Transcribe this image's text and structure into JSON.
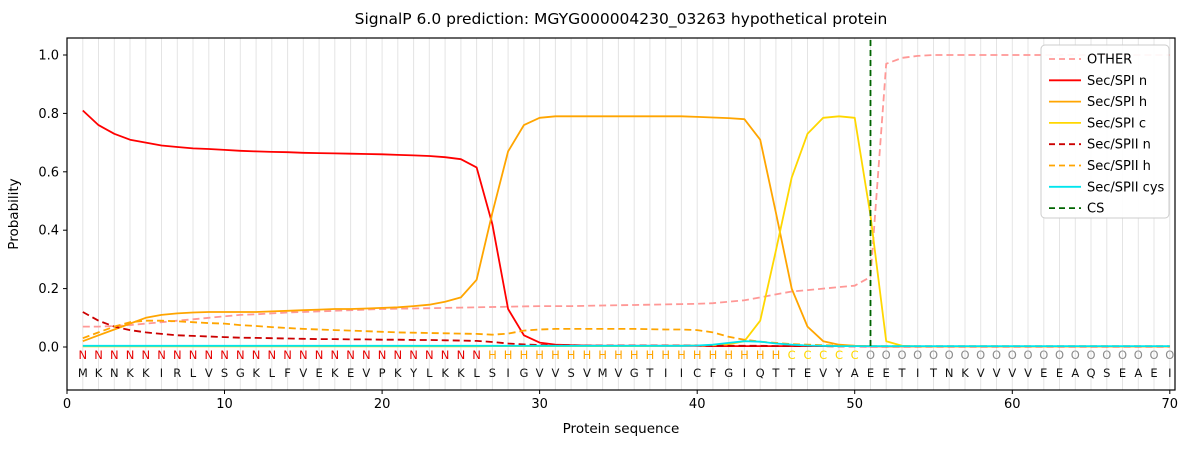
{
  "chart_data": {
    "type": "line",
    "title": "SignalP 6.0 prediction: MGYG000004230_03263 hypothetical protein",
    "xlabel": "Protein sequence",
    "ylabel": "Probability",
    "xticks": [
      0,
      10,
      20,
      30,
      40,
      50,
      60,
      70
    ],
    "yticks": [
      "0.0",
      "0.2",
      "0.4",
      "0.6",
      "0.8",
      "1.0"
    ],
    "xlim": [
      0,
      70.33
    ],
    "ylim": [
      -0.15,
      1.06
    ],
    "grid": "vertical-per-residue",
    "legend_position": "upper-right",
    "x_start": 1,
    "x_step": 1,
    "series": [
      {
        "name": "OTHER",
        "color": "#ff9896",
        "dash": "dashed",
        "values": [
          0.07,
          0.07,
          0.072,
          0.075,
          0.08,
          0.085,
          0.09,
          0.095,
          0.1,
          0.105,
          0.11,
          0.112,
          0.115,
          0.118,
          0.12,
          0.122,
          0.124,
          0.126,
          0.128,
          0.13,
          0.131,
          0.132,
          0.133,
          0.134,
          0.135,
          0.136,
          0.137,
          0.138,
          0.139,
          0.14,
          0.14,
          0.14,
          0.141,
          0.142,
          0.143,
          0.144,
          0.145,
          0.146,
          0.147,
          0.148,
          0.15,
          0.155,
          0.16,
          0.17,
          0.18,
          0.19,
          0.195,
          0.2,
          0.205,
          0.21,
          0.24,
          0.97,
          0.99,
          0.997,
          1.0,
          1.0,
          1.0,
          1.0,
          1.0,
          1.0,
          1.0,
          1.0,
          1.0,
          1.0,
          1.0,
          1.0,
          1.0,
          1.0,
          1.0,
          1.0
        ]
      },
      {
        "name": "Sec/SPI n",
        "color": "#ff0000",
        "dash": "solid",
        "values": [
          0.81,
          0.76,
          0.73,
          0.71,
          0.7,
          0.69,
          0.685,
          0.68,
          0.678,
          0.675,
          0.672,
          0.67,
          0.668,
          0.667,
          0.665,
          0.664,
          0.663,
          0.662,
          0.661,
          0.66,
          0.658,
          0.656,
          0.654,
          0.65,
          0.643,
          0.615,
          0.42,
          0.13,
          0.04,
          0.015,
          0.008,
          0.006,
          0.005,
          0.004,
          0.004,
          0.004,
          0.004,
          0.004,
          0.004,
          0.004,
          0.003,
          0.003,
          0.003,
          0.003,
          0.003,
          0.003,
          0.003,
          0.003,
          0.003,
          0.003,
          0.002,
          0.002,
          0.002,
          0.002,
          0.002,
          0.002,
          0.002,
          0.002,
          0.002,
          0.002,
          0.002,
          0.002,
          0.002,
          0.002,
          0.002,
          0.002,
          0.002,
          0.002,
          0.002,
          0.002
        ]
      },
      {
        "name": "Sec/SPI h",
        "color": "#ffa500",
        "dash": "solid",
        "values": [
          0.02,
          0.04,
          0.06,
          0.08,
          0.1,
          0.11,
          0.115,
          0.118,
          0.12,
          0.12,
          0.12,
          0.12,
          0.122,
          0.124,
          0.126,
          0.128,
          0.13,
          0.13,
          0.132,
          0.134,
          0.136,
          0.14,
          0.145,
          0.155,
          0.17,
          0.23,
          0.46,
          0.67,
          0.76,
          0.785,
          0.79,
          0.79,
          0.79,
          0.79,
          0.79,
          0.79,
          0.79,
          0.79,
          0.79,
          0.788,
          0.786,
          0.784,
          0.78,
          0.71,
          0.46,
          0.2,
          0.07,
          0.02,
          0.008,
          0.004,
          0.003,
          0.002,
          0.002,
          0.002,
          0.002,
          0.002,
          0.002,
          0.002,
          0.002,
          0.002,
          0.002,
          0.002,
          0.002,
          0.002,
          0.002,
          0.002,
          0.002,
          0.002,
          0.002,
          0.002
        ]
      },
      {
        "name": "Sec/SPI c",
        "color": "#ffd700",
        "dash": "solid",
        "values": [
          0.002,
          0.002,
          0.002,
          0.002,
          0.002,
          0.002,
          0.002,
          0.002,
          0.002,
          0.002,
          0.002,
          0.002,
          0.002,
          0.002,
          0.002,
          0.002,
          0.002,
          0.002,
          0.002,
          0.002,
          0.002,
          0.002,
          0.002,
          0.002,
          0.002,
          0.002,
          0.003,
          0.003,
          0.003,
          0.003,
          0.003,
          0.003,
          0.003,
          0.003,
          0.003,
          0.003,
          0.003,
          0.004,
          0.004,
          0.005,
          0.006,
          0.01,
          0.02,
          0.09,
          0.33,
          0.58,
          0.73,
          0.785,
          0.79,
          0.785,
          0.45,
          0.02,
          0.004,
          0.002,
          0.002,
          0.002,
          0.002,
          0.002,
          0.002,
          0.002,
          0.002,
          0.002,
          0.002,
          0.002,
          0.002,
          0.002,
          0.002,
          0.002,
          0.002,
          0.002
        ]
      },
      {
        "name": "Sec/SPII n",
        "color": "#cc0000",
        "dash": "dashed",
        "values": [
          0.12,
          0.09,
          0.07,
          0.058,
          0.05,
          0.045,
          0.04,
          0.038,
          0.036,
          0.034,
          0.032,
          0.031,
          0.03,
          0.029,
          0.028,
          0.027,
          0.027,
          0.026,
          0.026,
          0.025,
          0.025,
          0.024,
          0.024,
          0.023,
          0.022,
          0.021,
          0.017,
          0.012,
          0.009,
          0.007,
          0.006,
          0.006,
          0.005,
          0.005,
          0.005,
          0.005,
          0.005,
          0.005,
          0.005,
          0.005,
          0.004,
          0.004,
          0.004,
          0.004,
          0.003,
          0.003,
          0.003,
          0.003,
          0.002,
          0.002,
          0.002,
          0.002,
          0.002,
          0.002,
          0.002,
          0.002,
          0.002,
          0.002,
          0.002,
          0.002,
          0.002,
          0.002,
          0.002,
          0.002,
          0.002,
          0.002,
          0.002,
          0.002,
          0.002,
          0.002
        ]
      },
      {
        "name": "Sec/SPII h",
        "color": "#ffa500",
        "dash": "dashed",
        "values": [
          0.03,
          0.05,
          0.07,
          0.085,
          0.09,
          0.09,
          0.088,
          0.085,
          0.082,
          0.08,
          0.075,
          0.072,
          0.068,
          0.065,
          0.062,
          0.06,
          0.058,
          0.056,
          0.054,
          0.052,
          0.05,
          0.049,
          0.048,
          0.047,
          0.046,
          0.045,
          0.042,
          0.046,
          0.056,
          0.06,
          0.062,
          0.062,
          0.062,
          0.062,
          0.062,
          0.062,
          0.061,
          0.06,
          0.06,
          0.058,
          0.05,
          0.035,
          0.025,
          0.018,
          0.014,
          0.01,
          0.008,
          0.006,
          0.005,
          0.004,
          0.003,
          0.003,
          0.003,
          0.003,
          0.003,
          0.003,
          0.003,
          0.003,
          0.003,
          0.003,
          0.003,
          0.003,
          0.003,
          0.003,
          0.003,
          0.003,
          0.003,
          0.003,
          0.003,
          0.003
        ]
      },
      {
        "name": "Sec/SPII cys",
        "color": "#00e5ee",
        "dash": "solid",
        "values": [
          0.004,
          0.004,
          0.004,
          0.004,
          0.004,
          0.004,
          0.004,
          0.004,
          0.004,
          0.004,
          0.004,
          0.004,
          0.004,
          0.004,
          0.004,
          0.004,
          0.004,
          0.004,
          0.004,
          0.004,
          0.004,
          0.004,
          0.004,
          0.004,
          0.004,
          0.004,
          0.004,
          0.004,
          0.004,
          0.004,
          0.004,
          0.004,
          0.004,
          0.004,
          0.004,
          0.004,
          0.004,
          0.004,
          0.004,
          0.005,
          0.008,
          0.014,
          0.02,
          0.018,
          0.012,
          0.008,
          0.005,
          0.004,
          0.003,
          0.003,
          0.003,
          0.003,
          0.003,
          0.003,
          0.003,
          0.003,
          0.003,
          0.003,
          0.003,
          0.003,
          0.003,
          0.003,
          0.003,
          0.003,
          0.003,
          0.003,
          0.003,
          0.003,
          0.003,
          0.003
        ]
      }
    ],
    "cs_line": {
      "name": "CS",
      "x": 51,
      "color": "#006400",
      "dash": "dashed"
    },
    "legend": [
      "OTHER",
      "Sec/SPI n",
      "Sec/SPI h",
      "Sec/SPI c",
      "Sec/SPII n",
      "Sec/SPII h",
      "Sec/SPII cys",
      "CS"
    ],
    "sequence": [
      "M",
      "K",
      "N",
      "K",
      "K",
      "I",
      "R",
      "L",
      "V",
      "S",
      "G",
      "K",
      "L",
      "F",
      "V",
      "E",
      "K",
      "E",
      "V",
      "P",
      "K",
      "Y",
      "L",
      "K",
      "K",
      "L",
      "S",
      "I",
      "G",
      "V",
      "V",
      "S",
      "V",
      "M",
      "V",
      "G",
      "T",
      "I",
      "I",
      "C",
      "F",
      "G",
      "I",
      "Q",
      "T",
      "T",
      "E",
      "V",
      "Y",
      "A",
      "E",
      "E",
      "T",
      "I",
      "T",
      "N",
      "K",
      "V",
      "V",
      "V",
      "V",
      "E",
      "E",
      "A",
      "Q",
      "S",
      "E",
      "A",
      "E",
      "I"
    ],
    "regions": [
      "N",
      "N",
      "N",
      "N",
      "N",
      "N",
      "N",
      "N",
      "N",
      "N",
      "N",
      "N",
      "N",
      "N",
      "N",
      "N",
      "N",
      "N",
      "N",
      "N",
      "N",
      "N",
      "N",
      "N",
      "N",
      "N",
      "H",
      "H",
      "H",
      "H",
      "H",
      "H",
      "H",
      "H",
      "H",
      "H",
      "H",
      "H",
      "H",
      "H",
      "H",
      "H",
      "H",
      "H",
      "H",
      "C",
      "C",
      "C",
      "C",
      "C",
      "O",
      "O",
      "O",
      "O",
      "O",
      "O",
      "O",
      "O",
      "O",
      "O",
      "O",
      "O",
      "O",
      "O",
      "O",
      "O",
      "O",
      "O",
      "O",
      "O"
    ],
    "region_colors": {
      "N": "#e60000",
      "H": "#ffa500",
      "C": "#ffd700",
      "O": "#8c8c8c"
    },
    "sequence_color": "#111111"
  }
}
